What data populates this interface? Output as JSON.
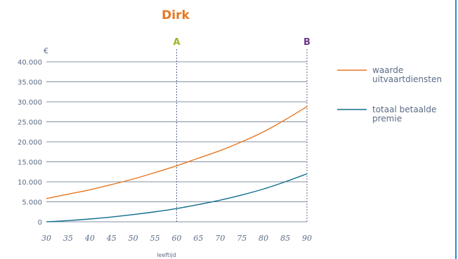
{
  "chart_data": {
    "type": "line",
    "title": "Dirk",
    "xlabel": "leeftijd",
    "ylabel": "€",
    "xlim": [
      30,
      90
    ],
    "ylim": [
      0,
      40000
    ],
    "x_ticks": [
      "30",
      "35",
      "40",
      "45",
      "50",
      "55",
      "60",
      "65",
      "70",
      "75",
      "80",
      "85",
      "90"
    ],
    "y_ticks": [
      "0",
      "5.000",
      "10.000",
      "15.000",
      "20.000",
      "25.000",
      "30.000",
      "35.000",
      "40.000"
    ],
    "grid": true,
    "legend": "right",
    "markers": [
      {
        "label": "A",
        "x": 60,
        "color": "#9fb323"
      },
      {
        "label": "B",
        "x": 90,
        "color": "#6b3a8c"
      }
    ],
    "series": [
      {
        "name_lines": [
          "waarde",
          "uitvaartdiensten"
        ],
        "color": "#e87722",
        "x": [
          30,
          35,
          40,
          45,
          50,
          55,
          60,
          65,
          70,
          75,
          80,
          85,
          90
        ],
        "values": [
          5800,
          6900,
          8000,
          9300,
          10700,
          12300,
          14000,
          15900,
          17800,
          20000,
          22500,
          25500,
          28800
        ]
      },
      {
        "name_lines": [
          "totaal betaalde",
          "premie"
        ],
        "color": "#0f6e8c",
        "x": [
          30,
          35,
          40,
          45,
          50,
          55,
          60,
          65,
          70,
          75,
          80,
          85,
          90
        ],
        "values": [
          0,
          300,
          700,
          1200,
          1800,
          2500,
          3300,
          4300,
          5400,
          6700,
          8200,
          10000,
          12000
        ]
      }
    ]
  }
}
